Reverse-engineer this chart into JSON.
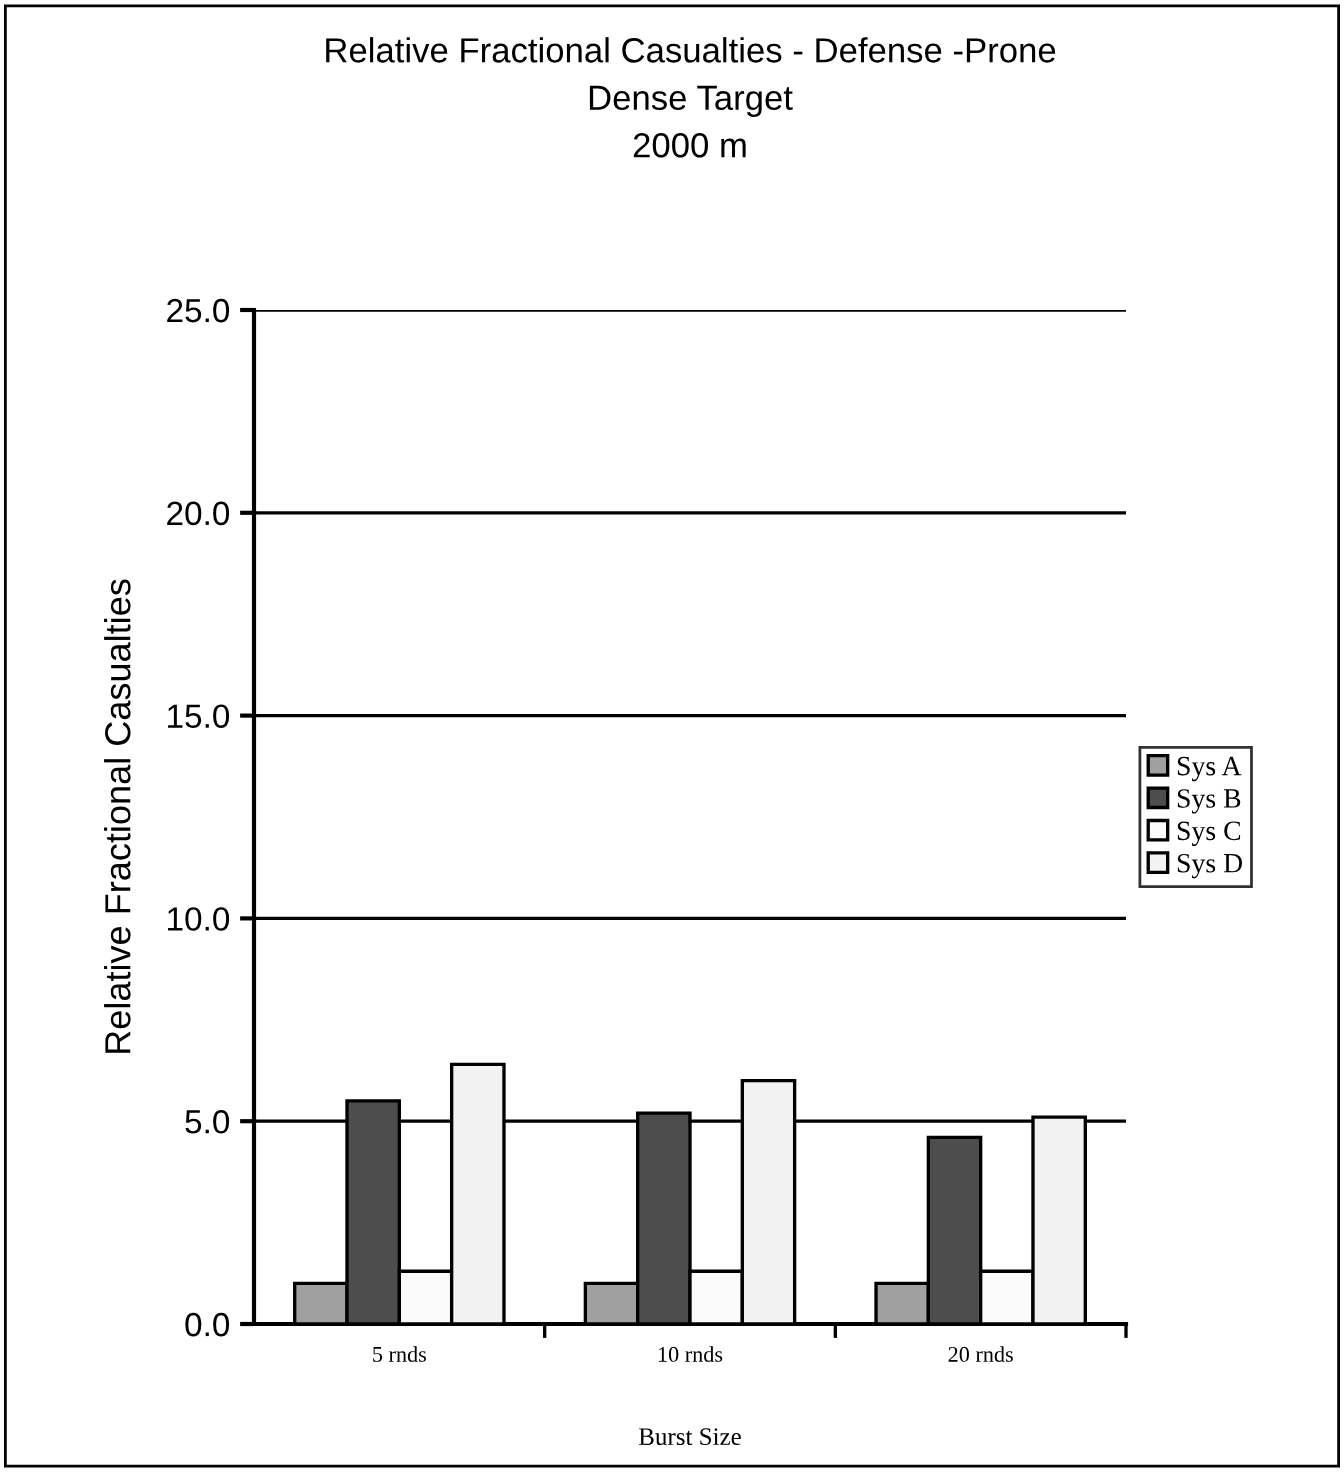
{
  "chart_data": {
    "type": "bar",
    "title": "Relative Fractional Casualties - Defense -Prone\nDense Target\n2000 m",
    "xlabel": "Burst Size",
    "ylabel": "Relative Fractional Casualties",
    "categories": [
      "5 rnds",
      "10 rnds",
      "20 rnds"
    ],
    "series": [
      {
        "name": "Sys A",
        "color": "#a0a0a0",
        "values": [
          1.0,
          1.0,
          1.0
        ]
      },
      {
        "name": "Sys B",
        "color": "#4d4d4d",
        "values": [
          5.5,
          5.2,
          4.6
        ]
      },
      {
        "name": "Sys C",
        "color": "#fbfbfb",
        "values": [
          1.3,
          1.3,
          1.3
        ]
      },
      {
        "name": "Sys D",
        "color": "#f2f2f2",
        "values": [
          6.4,
          6.0,
          5.1
        ]
      }
    ],
    "ylim": [
      0,
      25
    ],
    "yticks": [
      {
        "value": 0,
        "label": "0.0"
      },
      {
        "value": 5,
        "label": "5.0"
      },
      {
        "value": 10,
        "label": "10.0"
      },
      {
        "value": 15,
        "label": "15.0"
      },
      {
        "value": 20,
        "label": "20.0"
      },
      {
        "value": 25,
        "label": "25.0"
      }
    ],
    "grid": "y",
    "legend": "right"
  }
}
